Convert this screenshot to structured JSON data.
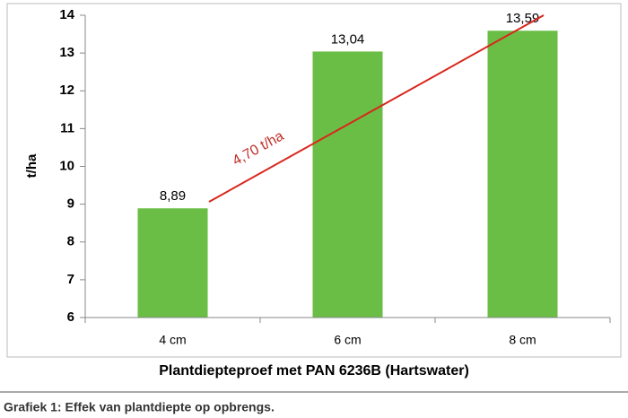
{
  "chart_data": {
    "type": "bar",
    "categories": [
      "4 cm",
      "6 cm",
      "8 cm"
    ],
    "values": [
      8.89,
      13.04,
      13.59
    ],
    "value_labels": [
      "8,89",
      "13,04",
      "13,59"
    ],
    "color": "#6abd45",
    "xlabel": "Plantdiepteproef met PAN 6236B (Hartswater)",
    "ylabel": "t/ha",
    "ylim": [
      6,
      14
    ],
    "yticks": [
      6,
      7,
      8,
      9,
      10,
      11,
      12,
      13,
      14
    ],
    "grid": false,
    "annotation": "4,70 t/ha"
  },
  "caption": "Grafiek 1: Effek van plantdiepte op opbrengs."
}
